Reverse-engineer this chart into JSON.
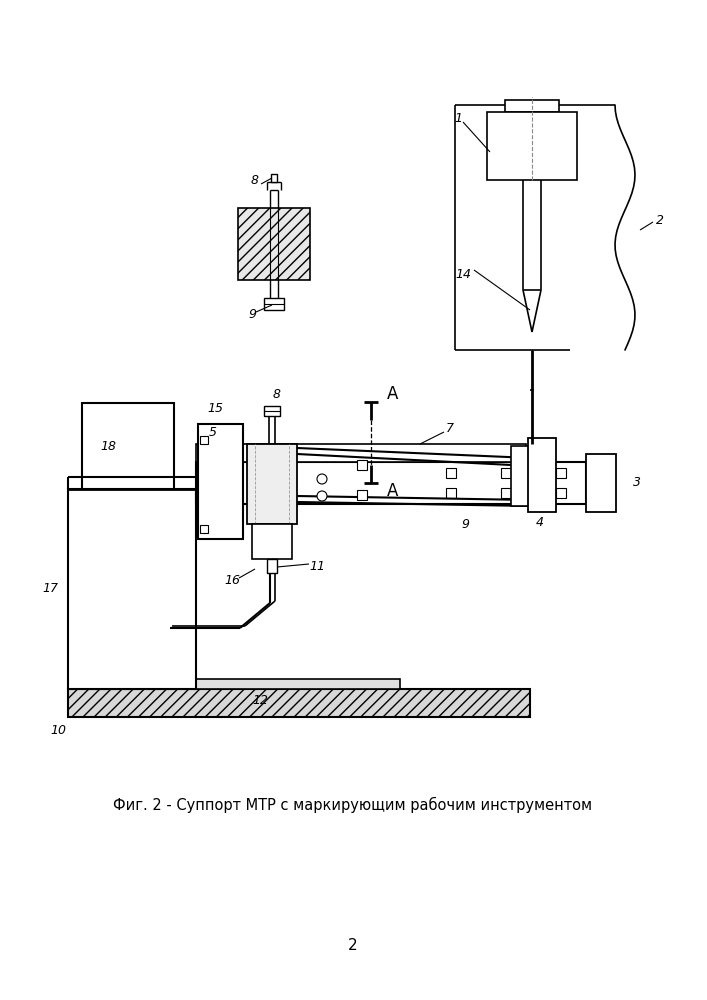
{
  "caption": "Фиг. 2 - Суппорт МТР с маркирующим рабочим инструментом",
  "page_number": "2",
  "bg_color": "#ffffff",
  "figsize": [
    7.07,
    10.0
  ],
  "dpi": 100
}
